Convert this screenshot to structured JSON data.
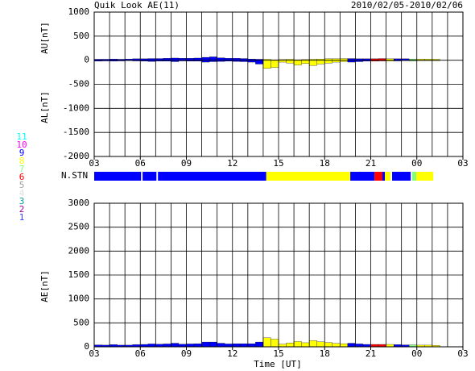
{
  "chart_data": {
    "type": "area",
    "title": "Quik Look AE(11)",
    "date": "2010/02/05-2010/02/06",
    "xlabel": "Time [UT]",
    "xlim": [
      0,
      24
    ],
    "xgrid": 1,
    "xticks": [
      {
        "value": 0,
        "label": "03"
      },
      {
        "value": 3,
        "label": "06"
      },
      {
        "value": 6,
        "label": "09"
      },
      {
        "value": 9,
        "label": "12"
      },
      {
        "value": 12,
        "label": "15"
      },
      {
        "value": 15,
        "label": "18"
      },
      {
        "value": 18,
        "label": "21"
      },
      {
        "value": 21,
        "label": "00"
      },
      {
        "value": 24,
        "label": "03"
      }
    ],
    "x": [
      0,
      0.5,
      1,
      1.5,
      2,
      2.5,
      3,
      3.5,
      4,
      4.5,
      5,
      5.5,
      6,
      6.5,
      7,
      7.5,
      8,
      8.5,
      9,
      9.5,
      10,
      10.5,
      11,
      11.5,
      12,
      12.5,
      13,
      13.5,
      14,
      14.5,
      15,
      15.5,
      16,
      16.5,
      17,
      17.5,
      18,
      18.5,
      19,
      19.5,
      20,
      20.5,
      21,
      21.5,
      22
    ],
    "top": {
      "ylim": [
        -2000,
        1000
      ],
      "yticks": [
        -2000,
        -1500,
        -1000,
        -500,
        0,
        500,
        1000
      ],
      "series": [
        {
          "label": "AU[nT]",
          "values": [
            20,
            20,
            25,
            20,
            25,
            30,
            30,
            35,
            35,
            40,
            45,
            40,
            40,
            45,
            60,
            70,
            50,
            40,
            40,
            35,
            25,
            20,
            20,
            10,
            15,
            20,
            10,
            15,
            20,
            25,
            30,
            30,
            35,
            35,
            30,
            30,
            30,
            35,
            30,
            30,
            30,
            25,
            25,
            25,
            20
          ]
        },
        {
          "label": "AL[nT]",
          "values": [
            -20,
            -15,
            -20,
            -15,
            -10,
            -15,
            -20,
            -25,
            -20,
            -20,
            -30,
            -15,
            -20,
            -20,
            -40,
            -30,
            -25,
            -20,
            -25,
            -30,
            -40,
            -80,
            -170,
            -150,
            -40,
            -60,
            -100,
            -70,
            -110,
            -80,
            -60,
            -40,
            -30,
            -40,
            -30,
            -20,
            -20,
            -15,
            -20,
            -15,
            -10,
            -15,
            -10,
            -10,
            -10
          ]
        }
      ]
    },
    "bottom": {
      "ylim": [
        0,
        3000
      ],
      "yticks": [
        0,
        500,
        1000,
        1500,
        2000,
        2500,
        3000
      ],
      "series": [
        {
          "label": "AE[nT]",
          "values": [
            40,
            35,
            45,
            35,
            35,
            45,
            50,
            60,
            55,
            60,
            75,
            55,
            60,
            65,
            100,
            100,
            75,
            60,
            65,
            65,
            65,
            100,
            190,
            160,
            55,
            80,
            110,
            85,
            130,
            105,
            90,
            70,
            65,
            75,
            60,
            50,
            50,
            50,
            50,
            45,
            40,
            40,
            35,
            35,
            30
          ]
        }
      ]
    },
    "stations": {
      "label": "N.STN",
      "segments": [
        {
          "start": 0,
          "end": 3.05,
          "n": 9
        },
        {
          "start": 3.15,
          "end": 4.05,
          "n": 9
        },
        {
          "start": 4.15,
          "end": 11.2,
          "n": 9
        },
        {
          "start": 11.2,
          "end": 16.67,
          "n": 8
        },
        {
          "start": 16.67,
          "end": 18.24,
          "n": 9
        },
        {
          "start": 18.24,
          "end": 18.76,
          "n": 6
        },
        {
          "start": 18.76,
          "end": 18.92,
          "n": 9
        },
        {
          "start": 18.92,
          "end": 19.29,
          "n": 8
        },
        {
          "start": 19.39,
          "end": 20.6,
          "n": 9
        },
        {
          "start": 20.7,
          "end": 20.96,
          "n": 7
        },
        {
          "start": 20.96,
          "end": 22.07,
          "n": 8
        }
      ]
    },
    "legend": [
      {
        "label": "1",
        "color": "#4040ff"
      },
      {
        "label": "2",
        "color": "#a000a0"
      },
      {
        "label": "3",
        "color": "#00a0a0"
      },
      {
        "label": "4",
        "color": "#e0e0e0"
      },
      {
        "label": "5",
        "color": "#a0a0a0"
      },
      {
        "label": "6",
        "color": "#ff0000"
      },
      {
        "label": "7",
        "color": "#80ff80"
      },
      {
        "label": "8",
        "color": "#ffff00"
      },
      {
        "label": "9",
        "color": "#0000ff"
      },
      {
        "label": "10",
        "color": "#ff00ff"
      },
      {
        "label": "11",
        "color": "#00ffff"
      }
    ]
  }
}
